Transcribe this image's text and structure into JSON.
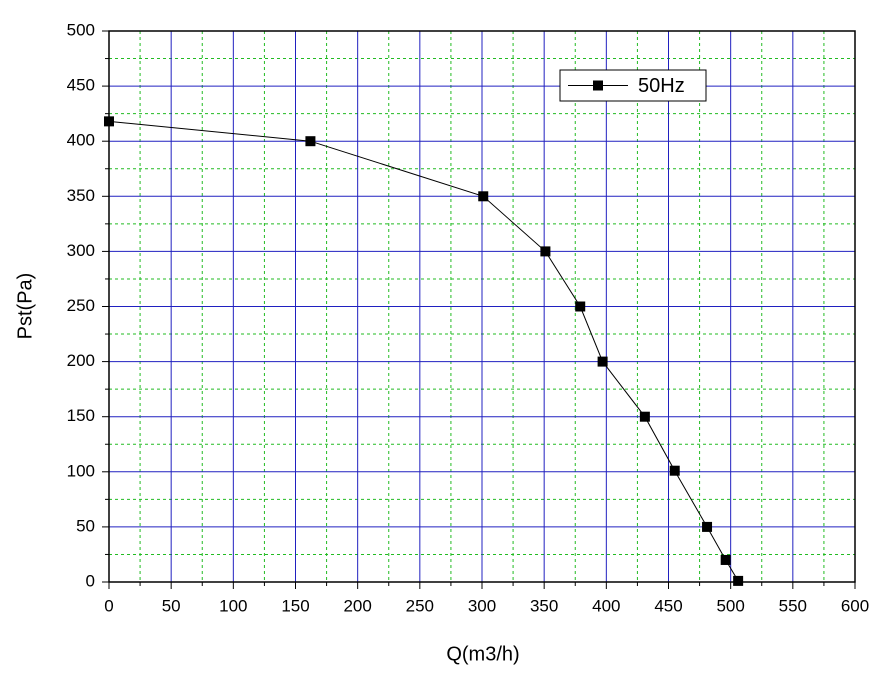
{
  "chart_data": {
    "type": "line",
    "x_label": "Q(m3/h)",
    "y_label": "Pst(Pa)",
    "series": [
      {
        "name": "50Hz",
        "color": "#000000",
        "x": [
          0,
          162,
          301,
          351,
          379,
          397,
          431,
          455,
          481,
          496,
          506
        ],
        "values": [
          418,
          400,
          350,
          300,
          250,
          200,
          150,
          101,
          50,
          20,
          1
        ]
      }
    ],
    "xlim": [
      0,
      600
    ],
    "xticks": [
      0,
      50,
      100,
      150,
      200,
      250,
      300,
      350,
      400,
      450,
      500,
      550,
      600
    ],
    "ylim": [
      0,
      500
    ],
    "yticks": [
      0,
      50,
      100,
      150,
      200,
      250,
      300,
      350,
      400,
      450,
      500
    ],
    "grid": true,
    "grid_color": "#2020c0",
    "minor_grid": true,
    "minor_grid_color": "#22bb22",
    "legend": "upper right"
  }
}
